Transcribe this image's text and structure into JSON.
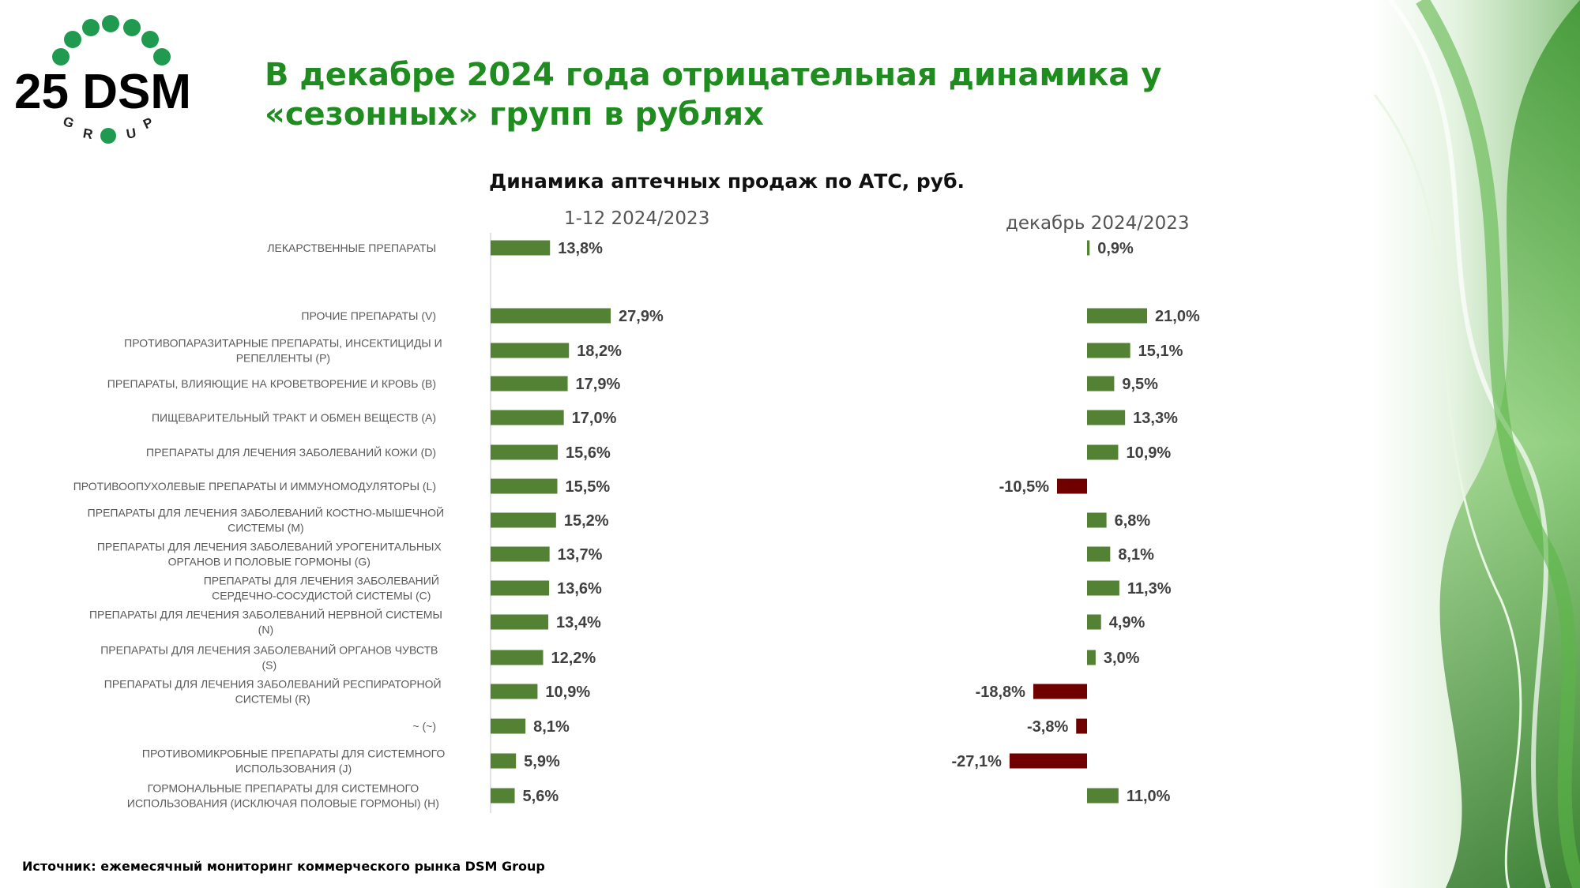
{
  "logo": {
    "text": "25 DSM",
    "subtext": "GROUP"
  },
  "title": "В декабре 2024 года отрицательная динамика у «сезонных» групп в рублях",
  "source": "Источник: ежемесячный мониторинг коммерческого рынка DSM Group",
  "colors": {
    "title": "#1e8c1e",
    "positive": "#548235",
    "negative": "#700000"
  },
  "chart_data": {
    "type": "bar",
    "orientation": "horizontal",
    "title": "Динамика аптечных продаж по АТС, руб.",
    "categories": [
      "ЛЕКАРСТВЕННЫЕ ПРЕПАРАТЫ",
      "ПРОЧИЕ ПРЕПАРАТЫ (V)",
      "ПРОТИВОПАРАЗИТАРНЫЕ ПРЕПАРАТЫ, ИНСЕКТИЦИДЫ И РЕПЕЛЛЕНТЫ (P)",
      "ПРЕПАРАТЫ, ВЛИЯЮЩИЕ НА КРОВЕТВОРЕНИЕ И КРОВЬ (B)",
      "ПИЩЕВАРИТЕЛЬНЫЙ ТРАКТ И ОБМЕН ВЕЩЕСТВ (A)",
      "ПРЕПАРАТЫ ДЛЯ ЛЕЧЕНИЯ ЗАБОЛЕВАНИЙ КОЖИ (D)",
      "ПРОТИВООПУХОЛЕВЫЕ ПРЕПАРАТЫ И ИММУНОМОДУЛЯТОРЫ (L)",
      "ПРЕПАРАТЫ ДЛЯ ЛЕЧЕНИЯ ЗАБОЛЕВАНИЙ КОСТНО-МЫШЕЧНОЙ СИСТЕМЫ (M)",
      "ПРЕПАРАТЫ ДЛЯ ЛЕЧЕНИЯ ЗАБОЛЕВАНИЙ УРОГЕНИТАЛЬНЫХ ОРГАНОВ И ПОЛОВЫЕ ГОРМОНЫ (G)",
      "ПРЕПАРАТЫ ДЛЯ ЛЕЧЕНИЯ ЗАБОЛЕВАНИЙ СЕРДЕЧНО-СОСУДИСТОЙ СИСТЕМЫ (C)",
      "ПРЕПАРАТЫ ДЛЯ ЛЕЧЕНИЯ ЗАБОЛЕВАНИЙ НЕРВНОЙ СИСТЕМЫ (N)",
      "ПРЕПАРАТЫ ДЛЯ ЛЕЧЕНИЯ ЗАБОЛЕВАНИЙ ОРГАНОВ ЧУВСТВ (S)",
      "ПРЕПАРАТЫ ДЛЯ ЛЕЧЕНИЯ ЗАБОЛЕВАНИЙ РЕСПИРАТОРНОЙ СИСТЕМЫ (R)",
      "~ (~)",
      "ПРОТИВОМИКРОБНЫЕ ПРЕПАРАТЫ ДЛЯ СИСТЕМНОГО ИСПОЛЬЗОВАНИЯ (J)",
      "ГОРМОНАЛЬНЫЕ ПРЕПАРАТЫ ДЛЯ СИСТЕМНОГО ИСПОЛЬЗОВАНИЯ (ИСКЛЮЧАЯ ПОЛОВЫЕ ГОРМОНЫ) (H)"
    ],
    "series": [
      {
        "name": "1-12 2024/2023",
        "unit": "%",
        "values": [
          13.8,
          27.9,
          18.2,
          17.9,
          17.0,
          15.6,
          15.5,
          15.2,
          13.7,
          13.6,
          13.4,
          12.2,
          10.9,
          8.1,
          5.9,
          5.6
        ],
        "labels": [
          "13,8%",
          "27,9%",
          "18,2%",
          "17,9%",
          "17,0%",
          "15,6%",
          "15,5%",
          "15,2%",
          "13,7%",
          "13,6%",
          "13,4%",
          "12,2%",
          "10,9%",
          "8,1%",
          "5,9%",
          "5,6%"
        ]
      },
      {
        "name": "декабрь 2024/2023",
        "unit": "%",
        "values": [
          0.9,
          21.0,
          15.1,
          9.5,
          13.3,
          10.9,
          -10.5,
          6.8,
          8.1,
          11.3,
          4.9,
          3.0,
          -18.8,
          -3.8,
          -27.1,
          11.0
        ],
        "labels": [
          "0,9%",
          "21,0%",
          "15,1%",
          "9,5%",
          "13,3%",
          "10,9%",
          "-10,5%",
          "6,8%",
          "8,1%",
          "11,3%",
          "4,9%",
          "3,0%",
          "-18,8%",
          "-3,8%",
          "-27,1%",
          "11,0%"
        ]
      }
    ]
  }
}
